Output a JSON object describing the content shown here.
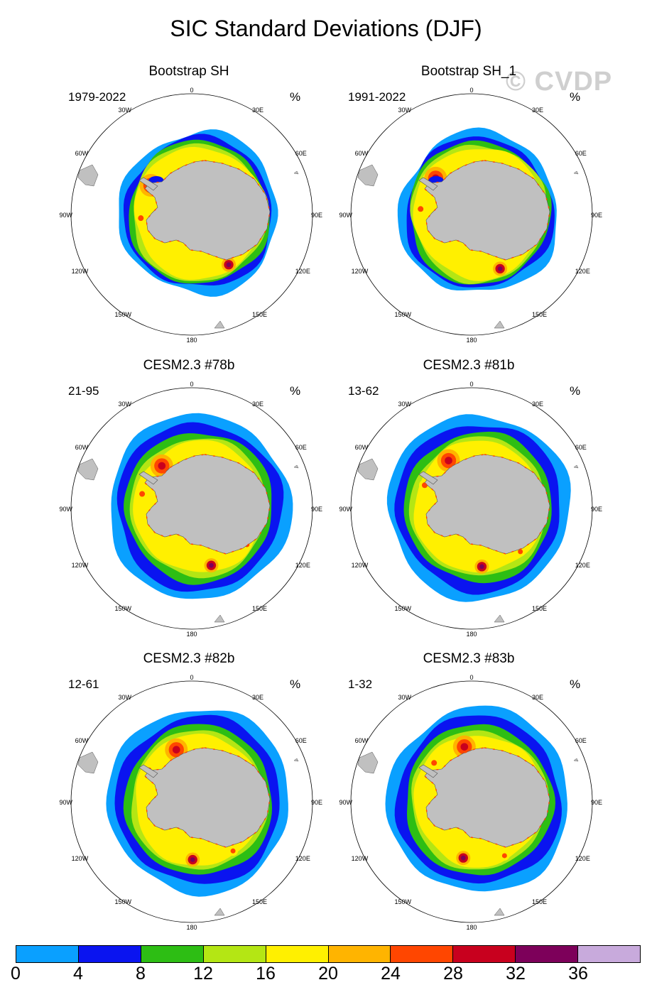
{
  "title": "SIC Standard Deviations (DJF)",
  "watermark": "© CVDP",
  "panels": [
    {
      "title": "Bootstrap SH",
      "years": "1979-2022",
      "unit": "%",
      "type": "obs",
      "variant": 0
    },
    {
      "title": "Bootstrap SH_1",
      "years": "1991-2022",
      "unit": "%",
      "type": "obs",
      "variant": 1
    },
    {
      "title": "CESM2.3 #78b",
      "years": "21-95",
      "unit": "%",
      "type": "model",
      "variant": 0
    },
    {
      "title": "CESM2.3 #81b",
      "years": "13-62",
      "unit": "%",
      "type": "model",
      "variant": 1
    },
    {
      "title": "CESM2.3 #82b",
      "years": "12-61",
      "unit": "%",
      "type": "model",
      "variant": 2
    },
    {
      "title": "CESM2.3 #83b",
      "years": "1-32",
      "unit": "%",
      "type": "model",
      "variant": 3
    }
  ],
  "lon_labels": [
    "0",
    "30E",
    "60E",
    "90E",
    "120E",
    "150E",
    "180",
    "150W",
    "120W",
    "90W",
    "60W",
    "30W"
  ],
  "colorbar": {
    "levels": [
      "0",
      "4",
      "8",
      "12",
      "16",
      "20",
      "24",
      "28",
      "32",
      "36"
    ],
    "colors": [
      "#0aa0ff",
      "#0a14f0",
      "#2dbe14",
      "#b4e614",
      "#fff000",
      "#ffb400",
      "#ff4600",
      "#c8001e",
      "#7d005a",
      "#c8aadc"
    ]
  },
  "land_color": "#c0c0c0"
}
